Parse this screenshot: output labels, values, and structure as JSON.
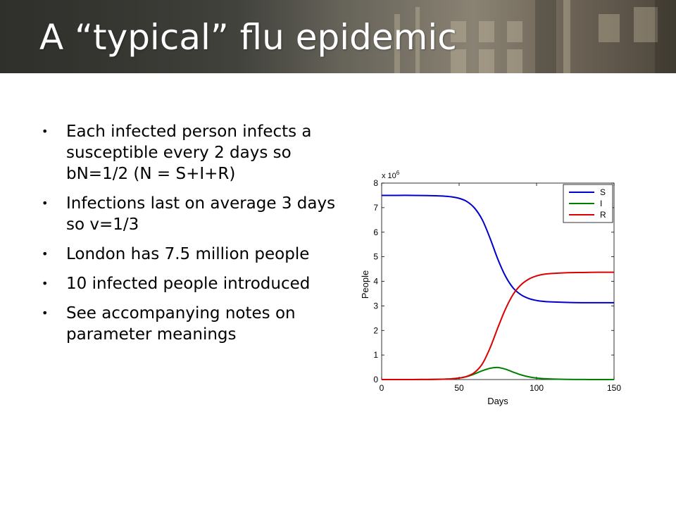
{
  "slide": {
    "title": "A “typical” flu epidemic",
    "bullets": [
      "Each infected person infects a susceptible every 2 days so bN=1/2 (N = S+I+R)",
      "Infections last on average 3 days so v=1/3",
      "London has 7.5 million people",
      "10 infected people introduced",
      "See accompanying notes on parameter meanings"
    ],
    "bullet_glyph": "•"
  },
  "chart_data": {
    "type": "line",
    "xlabel": "Days",
    "ylabel": "People",
    "y_multiplier": "x 10",
    "y_exponent": "6",
    "xlim": [
      0,
      150
    ],
    "ylim": [
      0,
      8
    ],
    "xticks": [
      0,
      50,
      100,
      150
    ],
    "yticks": [
      0,
      1,
      2,
      3,
      4,
      5,
      6,
      7,
      8
    ],
    "legend_position": "top-right",
    "grid": false,
    "x": [
      0,
      10,
      20,
      30,
      40,
      45,
      50,
      55,
      60,
      65,
      70,
      75,
      80,
      85,
      90,
      95,
      100,
      105,
      110,
      120,
      130,
      140,
      150
    ],
    "series": [
      {
        "name": "S",
        "color": "#0000cc",
        "values": [
          7.5,
          7.5,
          7.5,
          7.49,
          7.47,
          7.44,
          7.38,
          7.25,
          6.98,
          6.5,
          5.75,
          4.9,
          4.2,
          3.72,
          3.45,
          3.3,
          3.22,
          3.18,
          3.16,
          3.14,
          3.13,
          3.13,
          3.13
        ]
      },
      {
        "name": "I",
        "color": "#008000",
        "values": [
          0,
          0,
          0,
          0.005,
          0.015,
          0.03,
          0.06,
          0.12,
          0.23,
          0.36,
          0.46,
          0.49,
          0.42,
          0.3,
          0.19,
          0.11,
          0.06,
          0.035,
          0.02,
          0.006,
          0.002,
          0.001,
          0
        ]
      },
      {
        "name": "R",
        "color": "#dd0000",
        "values": [
          0,
          0,
          0,
          0.005,
          0.015,
          0.03,
          0.06,
          0.13,
          0.29,
          0.64,
          1.29,
          2.11,
          2.88,
          3.48,
          3.86,
          4.09,
          4.22,
          4.29,
          4.32,
          4.35,
          4.36,
          4.37,
          4.37
        ]
      }
    ]
  }
}
